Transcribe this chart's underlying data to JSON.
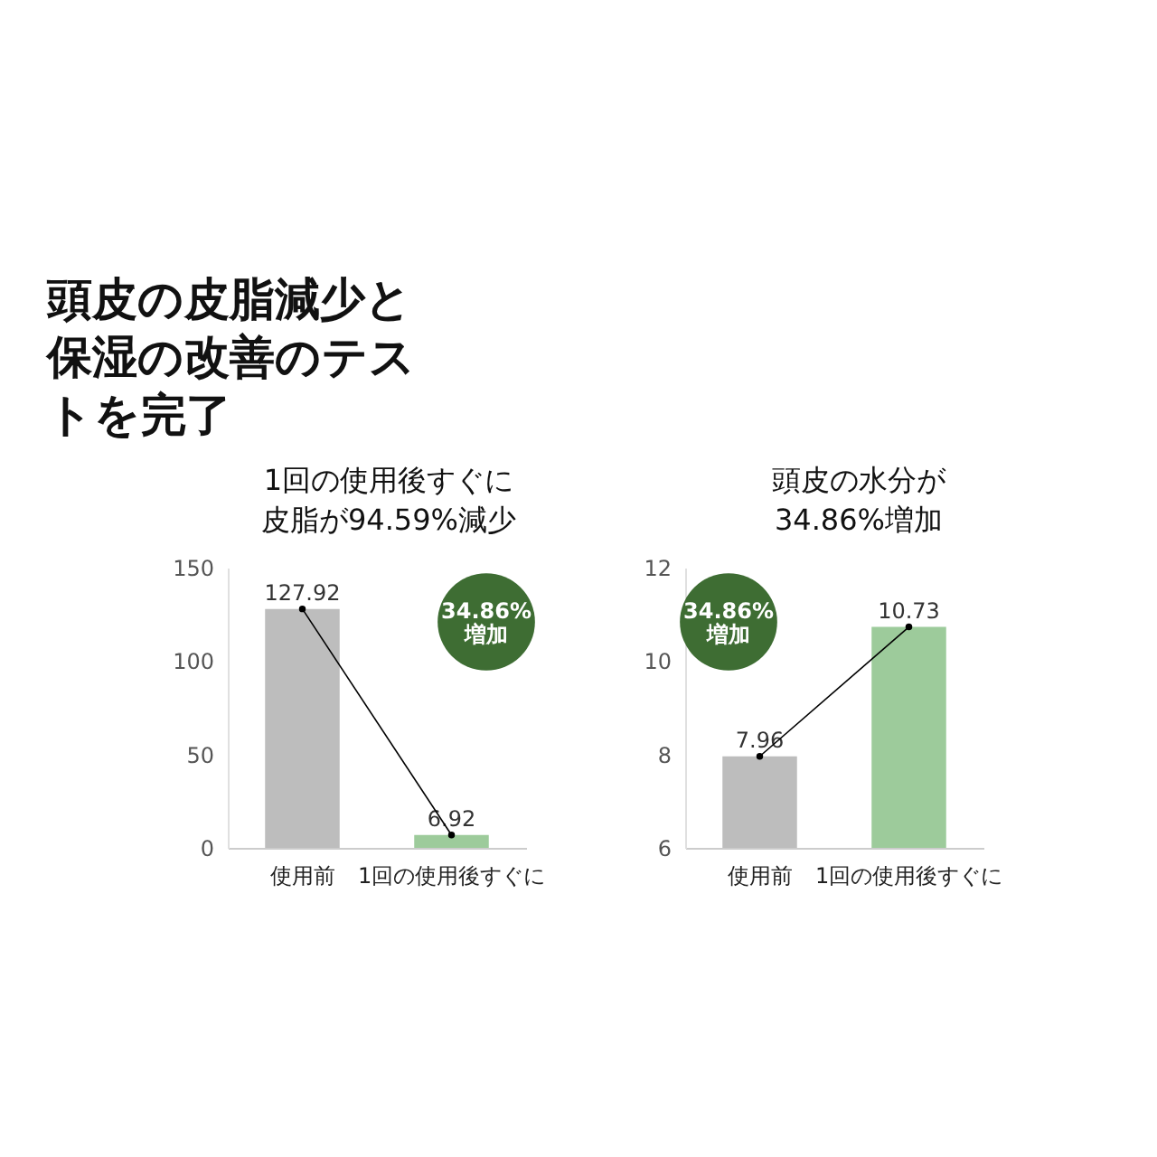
{
  "chart_data": [
    {
      "type": "bar",
      "title": "頭皮の皮脂減少と保湿の改善のテストを完了",
      "subtitle": "1回の使用後すぐに皮脂が94.59%減少",
      "categories": [
        "使用前",
        "1回の使用後すぐに"
      ],
      "series": [
        {
          "colors": [
            "#bdbdbd",
            "#9dcb9b"
          ],
          "values": [
            127.92,
            6.92
          ],
          "value_labels": [
            "127.92",
            "6.92"
          ]
        },
        {
          "type": "line",
          "color": "#000000",
          "values": [
            127.92,
            6.92
          ]
        }
      ],
      "ylim": [
        0,
        150
      ],
      "yticks": [
        0,
        50,
        100,
        150
      ],
      "marker": "circle",
      "grid": false,
      "annotations": [
        "34.86%\n増加"
      ]
    },
    {
      "type": "bar",
      "subtitle": "頭皮の水分が34.86%増加",
      "categories": [
        "使用前",
        "1回の使用後すぐに"
      ],
      "series": [
        {
          "colors": [
            "#bdbdbd",
            "#9dcb9b"
          ],
          "values": [
            7.96,
            10.73
          ],
          "value_labels": [
            "7.96",
            "10.73"
          ]
        },
        {
          "type": "line",
          "color": "#000000",
          "values": [
            7.96,
            10.73
          ]
        }
      ],
      "ylim": [
        6,
        12
      ],
      "yticks": [
        6,
        8,
        10,
        12
      ],
      "marker": "circle",
      "grid": false,
      "annotations": [
        "34.86%\n増加"
      ]
    }
  ]
}
